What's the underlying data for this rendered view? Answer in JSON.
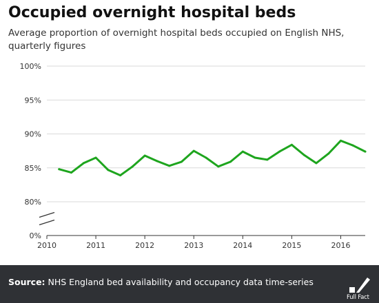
{
  "header": {
    "title": "Occupied overnight hospital beds",
    "subtitle": "Average proportion of overnight hospital beds occupied on English NHS, quarterly figures"
  },
  "footer": {
    "source_label": "Source:",
    "source_text": " NHS England bed availability and occupancy data time-series",
    "brand": "Full Fact"
  },
  "colors": {
    "line": "#1ea51e",
    "grid": "#d9d9d9",
    "footer_bg": "#2f3135"
  },
  "chart_data": {
    "type": "line",
    "title": "Occupied overnight hospital beds",
    "subtitle": "Average proportion of overnight hospital beds occupied on English NHS, quarterly figures",
    "xlabel": "",
    "ylabel": "",
    "y_axis_break": true,
    "x_ticks": [
      "2010",
      "2011",
      "2012",
      "2013",
      "2014",
      "2015",
      "2016"
    ],
    "y_ticks": [
      "0%",
      "80%",
      "85%",
      "90%",
      "95%",
      "100%"
    ],
    "y_tick_values": [
      0,
      80,
      85,
      90,
      95,
      100
    ],
    "xlim": [
      2010.0,
      2016.5
    ],
    "ylim_upper": [
      80,
      100
    ],
    "grid": true,
    "series": [
      {
        "x": [
          2010.25,
          2010.5,
          2010.75,
          2011.0,
          2011.25,
          2011.5,
          2011.75,
          2012.0,
          2012.25,
          2012.5,
          2012.75,
          2013.0,
          2013.25,
          2013.5,
          2013.75,
          2014.0,
          2014.25,
          2014.5,
          2014.75,
          2015.0,
          2015.25,
          2015.5,
          2015.75,
          2016.0,
          2016.25,
          2016.5
        ],
        "values": [
          84.8,
          84.3,
          85.7,
          86.5,
          84.7,
          83.9,
          85.2,
          86.8,
          86.0,
          85.3,
          85.9,
          87.5,
          86.5,
          85.2,
          85.9,
          87.4,
          86.5,
          86.2,
          87.4,
          88.4,
          86.9,
          85.7,
          87.1,
          89.0,
          88.3,
          87.4
        ]
      }
    ]
  }
}
